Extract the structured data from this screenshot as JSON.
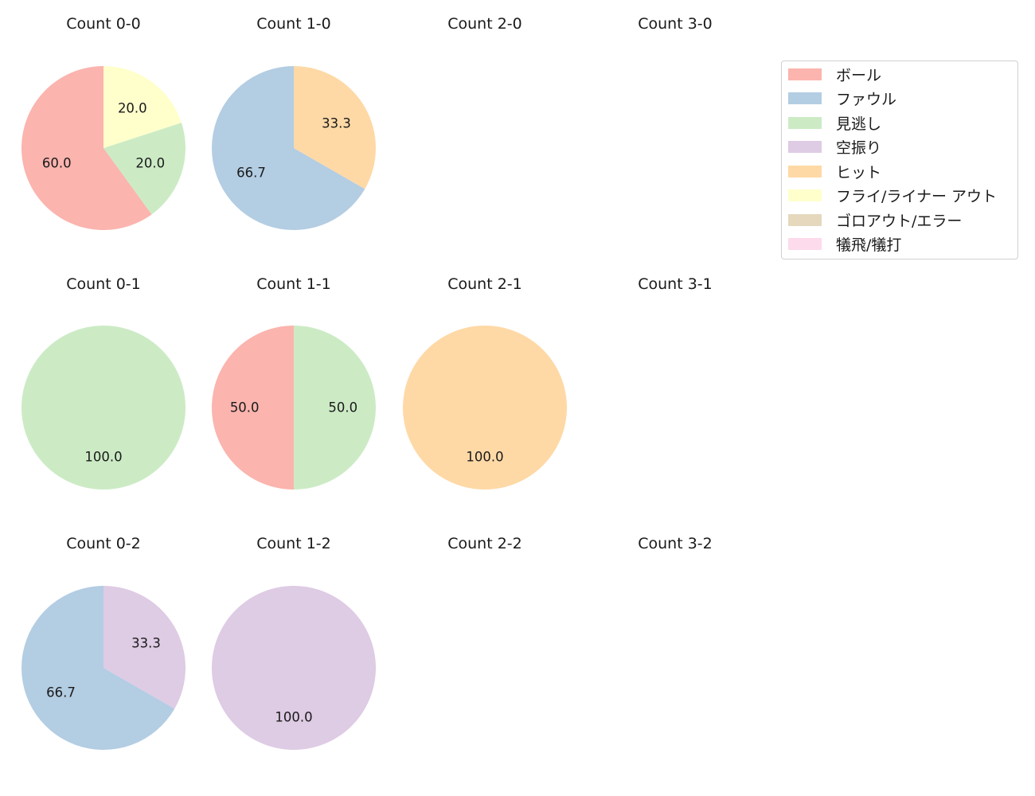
{
  "chart_data": {
    "type": "pie",
    "title": "",
    "categories": [
      "ボール",
      "ファウル",
      "見逃し",
      "空振り",
      "ヒット",
      "フライ/ライナー アウト",
      "ゴロアウト/エラー",
      "犠飛/犠打"
    ],
    "colors": [
      "#fbb4ae",
      "#b3cde3",
      "#ccebc5",
      "#decbe4",
      "#fed9a6",
      "#ffffcc",
      "#e5d8bd",
      "#fddaec"
    ],
    "legend_position": "upper right",
    "subplots": [
      {
        "title": "Count 0-0",
        "row": 0,
        "col": 0,
        "values": {
          "ボール": 60.0,
          "見逃し": 20.0,
          "フライ/ライナー アウト": 20.0
        },
        "order": [
          "ボール",
          "見逃し",
          "フライ/ライナー アウト"
        ]
      },
      {
        "title": "Count 1-0",
        "row": 0,
        "col": 1,
        "values": {
          "ファウル": 66.7,
          "ヒット": 33.3
        },
        "order": [
          "ファウル",
          "ヒット"
        ]
      },
      {
        "title": "Count 2-0",
        "row": 0,
        "col": 2,
        "values": {},
        "order": []
      },
      {
        "title": "Count 3-0",
        "row": 0,
        "col": 3,
        "values": {},
        "order": []
      },
      {
        "title": "Count 0-1",
        "row": 1,
        "col": 0,
        "values": {
          "見逃し": 100.0
        },
        "order": [
          "見逃し"
        ]
      },
      {
        "title": "Count 1-1",
        "row": 1,
        "col": 1,
        "values": {
          "ボール": 50.0,
          "見逃し": 50.0
        },
        "order": [
          "ボール",
          "見逃し"
        ]
      },
      {
        "title": "Count 2-1",
        "row": 1,
        "col": 2,
        "values": {
          "ヒット": 100.0
        },
        "order": [
          "ヒット"
        ]
      },
      {
        "title": "Count 3-1",
        "row": 1,
        "col": 3,
        "values": {},
        "order": []
      },
      {
        "title": "Count 0-2",
        "row": 2,
        "col": 0,
        "values": {
          "ファウル": 66.7,
          "空振り": 33.3
        },
        "order": [
          "ファウル",
          "空振り"
        ]
      },
      {
        "title": "Count 1-2",
        "row": 2,
        "col": 1,
        "values": {
          "空振り": 100.0
        },
        "order": [
          "空振り"
        ]
      },
      {
        "title": "Count 2-2",
        "row": 2,
        "col": 2,
        "values": {},
        "order": []
      },
      {
        "title": "Count 3-2",
        "row": 2,
        "col": 3,
        "values": {},
        "order": []
      }
    ]
  },
  "legend": {
    "items": [
      {
        "label": "ボール",
        "color": "#fbb4ae"
      },
      {
        "label": "ファウル",
        "color": "#b3cde3"
      },
      {
        "label": "見逃し",
        "color": "#ccebc5"
      },
      {
        "label": "空振り",
        "color": "#decbe4"
      },
      {
        "label": "ヒット",
        "color": "#fed9a6"
      },
      {
        "label": "フライ/ライナー アウト",
        "color": "#ffffcc"
      },
      {
        "label": "ゴロアウト/エラー",
        "color": "#e5d8bd"
      },
      {
        "label": "犠飛/犠打",
        "color": "#fddaec"
      }
    ]
  }
}
